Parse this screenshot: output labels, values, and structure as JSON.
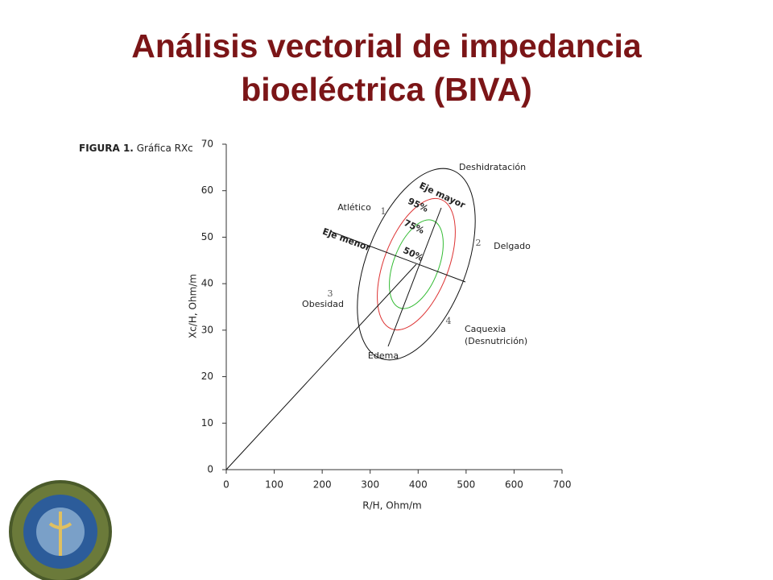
{
  "title_lines": [
    "Análisis vectorial de impedancia",
    "bioeléctrica (BIVA)"
  ],
  "chart_data": {
    "type": "biva",
    "figure_label": "FIGURA 1.",
    "figure_caption": "Gráfica RXc",
    "x_label": "R/H, Ohm/m",
    "y_label": "Xc/H, Ohm/m",
    "xlim": [
      0,
      700
    ],
    "xticks": [
      0,
      100,
      200,
      300,
      400,
      500,
      600,
      700
    ],
    "ylim": [
      0,
      70
    ],
    "yticks": [
      0,
      10,
      20,
      30,
      40,
      50,
      60,
      70
    ],
    "annotations": [
      "Deshidratación",
      "Atlético",
      "1",
      "Eje mayor",
      "95%",
      "75%",
      "50%",
      "Eje menor",
      "2",
      "Delgado",
      "3",
      "Obesidad",
      "4",
      "Caquexia",
      "(Desnutrición)",
      "Edema"
    ]
  }
}
